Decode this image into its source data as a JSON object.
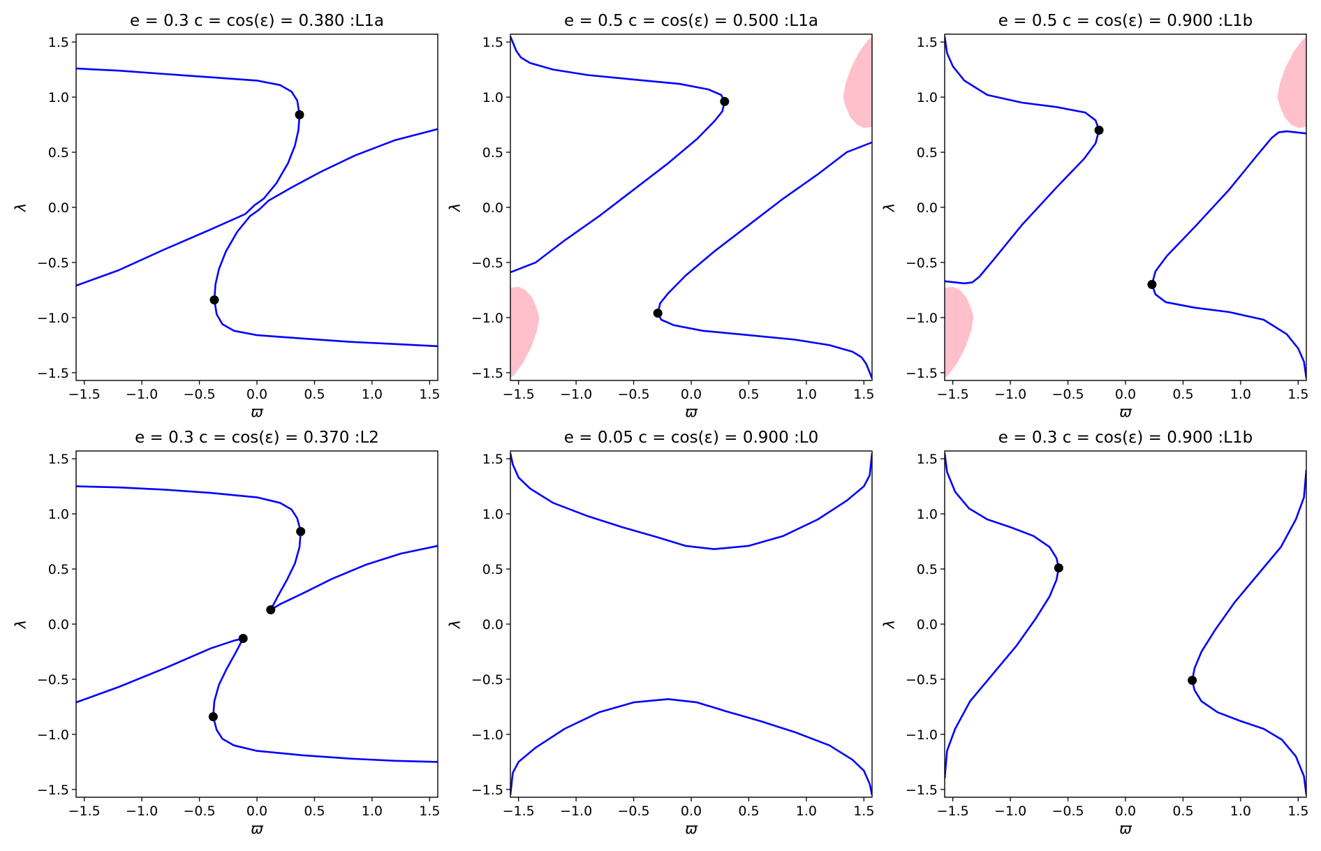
{
  "figure": {
    "grid": "2x3",
    "background": "#ffffff",
    "curve_color": "#0000ff",
    "marker_color": "#000000",
    "region_color": "#ffc0cb"
  },
  "chart_data": [
    {
      "type": "line",
      "title": "e = 0.3  c = cos(ε) = 0.380 :L1a",
      "xlabel": "ϖ",
      "ylabel": "λ",
      "xlim": [
        -1.5708,
        1.5708
      ],
      "ylim": [
        -1.5708,
        1.5708
      ],
      "xticks": [
        -1.5,
        -1.0,
        -0.5,
        0.0,
        0.5,
        1.0,
        1.5
      ],
      "yticks": [
        -1.5,
        -1.0,
        -0.5,
        0.0,
        0.5,
        1.0,
        1.5
      ],
      "tick_labels": [
        "−1.5",
        "−1.0",
        "−0.5",
        "0.0",
        "0.5",
        "1.0",
        "1.5"
      ],
      "grid": false,
      "series": [
        {
          "x": [
            -1.5708,
            -1.2,
            -0.8,
            -0.4,
            0.0,
            0.2,
            0.3,
            0.35,
            0.37,
            0.36,
            0.33,
            0.27,
            0.17,
            0.06,
            -0.02
          ],
          "y": [
            1.26,
            1.24,
            1.21,
            1.18,
            1.15,
            1.11,
            1.05,
            0.97,
            0.84,
            0.7,
            0.56,
            0.4,
            0.22,
            0.08,
            0.02
          ]
        },
        {
          "x": [
            -1.5708,
            -1.2,
            -0.8,
            -0.4,
            -0.1,
            -0.02
          ],
          "y": [
            -0.71,
            -0.57,
            -0.38,
            -0.2,
            -0.06,
            0.02
          ]
        },
        {
          "x": [
            0.02,
            0.1,
            0.3,
            0.55,
            0.85,
            1.2,
            1.5708
          ],
          "y": [
            -0.02,
            0.06,
            0.18,
            0.32,
            0.47,
            0.61,
            0.71
          ]
        },
        {
          "x": [
            0.02,
            -0.06,
            -0.17,
            -0.27,
            -0.33,
            -0.36,
            -0.37,
            -0.35,
            -0.3,
            -0.2,
            0.0,
            0.4,
            0.8,
            1.2,
            1.5708
          ],
          "y": [
            -0.02,
            -0.08,
            -0.22,
            -0.4,
            -0.56,
            -0.7,
            -0.84,
            -0.97,
            -1.06,
            -1.12,
            -1.16,
            -1.19,
            -1.22,
            -1.24,
            -1.26
          ]
        }
      ],
      "points": [
        {
          "x": 0.37,
          "y": 0.84
        },
        {
          "x": -0.37,
          "y": -0.84
        }
      ],
      "regions": []
    },
    {
      "type": "line",
      "title": "e = 0.5  c = cos(ε) = 0.500 :L1a",
      "xlabel": "ϖ",
      "ylabel": "λ",
      "xlim": [
        -1.5708,
        1.5708
      ],
      "ylim": [
        -1.5708,
        1.5708
      ],
      "xticks": [
        -1.5,
        -1.0,
        -0.5,
        0.0,
        0.5,
        1.0,
        1.5
      ],
      "yticks": [
        -1.5,
        -1.0,
        -0.5,
        0.0,
        0.5,
        1.0,
        1.5
      ],
      "tick_labels": [
        "−1.5",
        "−1.0",
        "−0.5",
        "0.0",
        "0.5",
        "1.0",
        "1.5"
      ],
      "grid": false,
      "series": [
        {
          "x": [
            -1.5708,
            -1.52,
            -1.48,
            -1.4,
            -1.2,
            -0.9,
            -0.5,
            -0.1,
            0.15,
            0.26,
            0.29,
            0.27,
            0.2,
            0.05,
            -0.2,
            -0.5,
            -0.8,
            -1.1,
            -1.35,
            -1.5708
          ],
          "y": [
            1.55,
            1.42,
            1.36,
            1.31,
            1.25,
            1.2,
            1.16,
            1.12,
            1.07,
            1.02,
            0.96,
            0.87,
            0.78,
            0.62,
            0.4,
            0.16,
            -0.08,
            -0.3,
            -0.5,
            -0.59
          ]
        },
        {
          "x": [
            1.5708,
            1.52,
            1.48,
            1.4,
            1.2,
            0.9,
            0.5,
            0.1,
            -0.15,
            -0.26,
            -0.29,
            -0.27,
            -0.2,
            -0.05,
            0.2,
            0.5,
            0.8,
            1.1,
            1.35,
            1.5708
          ],
          "y": [
            -1.55,
            -1.42,
            -1.36,
            -1.31,
            -1.25,
            -1.2,
            -1.16,
            -1.12,
            -1.07,
            -1.02,
            -0.96,
            -0.87,
            -0.78,
            -0.62,
            -0.4,
            -0.16,
            0.08,
            0.3,
            0.5,
            0.59
          ]
        }
      ],
      "points": [
        {
          "x": 0.29,
          "y": 0.96
        },
        {
          "x": -0.29,
          "y": -0.96
        }
      ],
      "regions": [
        {
          "x": [
            -1.5708,
            -1.5,
            -1.44,
            -1.38,
            -1.34,
            -1.32,
            -1.34,
            -1.39,
            -1.46,
            -1.53,
            -1.5708
          ],
          "y": [
            -0.73,
            -0.72,
            -0.75,
            -0.82,
            -0.92,
            -1.0,
            -1.12,
            -1.27,
            -1.41,
            -1.51,
            -1.55
          ]
        },
        {
          "x": [
            1.5708,
            1.5,
            1.44,
            1.38,
            1.34,
            1.32,
            1.34,
            1.39,
            1.46,
            1.53,
            1.5708
          ],
          "y": [
            0.73,
            0.72,
            0.75,
            0.82,
            0.92,
            1.0,
            1.12,
            1.27,
            1.41,
            1.51,
            1.55
          ]
        }
      ]
    },
    {
      "type": "line",
      "title": "e = 0.5  c = cos(ε) = 0.900 :L1b",
      "xlabel": "ϖ",
      "ylabel": "λ",
      "xlim": [
        -1.5708,
        1.5708
      ],
      "ylim": [
        -1.5708,
        1.5708
      ],
      "xticks": [
        -1.5,
        -1.0,
        -0.5,
        0.0,
        0.5,
        1.0,
        1.5
      ],
      "yticks": [
        -1.5,
        -1.0,
        -0.5,
        0.0,
        0.5,
        1.0,
        1.5
      ],
      "tick_labels": [
        "−1.5",
        "−1.0",
        "−0.5",
        "0.0",
        "0.5",
        "1.0",
        "1.5"
      ],
      "grid": false,
      "series": [
        {
          "x": [
            -1.5708,
            -1.55,
            -1.5,
            -1.4,
            -1.2,
            -0.9,
            -0.6,
            -0.35,
            -0.26,
            -0.23,
            -0.26,
            -0.36,
            -0.6,
            -0.9,
            -1.15,
            -1.27,
            -1.33,
            -1.4,
            -1.5708
          ],
          "y": [
            1.55,
            1.4,
            1.28,
            1.15,
            1.02,
            0.95,
            0.91,
            0.86,
            0.79,
            0.7,
            0.58,
            0.44,
            0.18,
            -0.16,
            -0.48,
            -0.63,
            -0.68,
            -0.69,
            -0.67
          ]
        },
        {
          "x": [
            1.5708,
            1.55,
            1.5,
            1.4,
            1.2,
            0.9,
            0.6,
            0.35,
            0.26,
            0.23,
            0.26,
            0.36,
            0.6,
            0.9,
            1.15,
            1.27,
            1.33,
            1.4,
            1.5708
          ],
          "y": [
            -1.55,
            -1.4,
            -1.28,
            -1.15,
            -1.02,
            -0.95,
            -0.91,
            -0.86,
            -0.79,
            -0.7,
            -0.58,
            -0.44,
            -0.18,
            0.16,
            0.48,
            0.63,
            0.68,
            0.69,
            0.67
          ]
        }
      ],
      "points": [
        {
          "x": -0.23,
          "y": 0.7
        },
        {
          "x": 0.23,
          "y": -0.7
        }
      ],
      "regions": [
        {
          "x": [
            -1.5708,
            -1.5,
            -1.44,
            -1.38,
            -1.34,
            -1.32,
            -1.34,
            -1.39,
            -1.46,
            -1.53,
            -1.5708
          ],
          "y": [
            -0.73,
            -0.72,
            -0.75,
            -0.82,
            -0.92,
            -1.0,
            -1.12,
            -1.27,
            -1.41,
            -1.51,
            -1.55
          ]
        },
        {
          "x": [
            1.5708,
            1.5,
            1.44,
            1.38,
            1.34,
            1.32,
            1.34,
            1.39,
            1.46,
            1.53,
            1.5708
          ],
          "y": [
            0.73,
            0.72,
            0.75,
            0.82,
            0.92,
            1.0,
            1.12,
            1.27,
            1.41,
            1.51,
            1.55
          ]
        }
      ]
    },
    {
      "type": "line",
      "title": "e = 0.3  c = cos(ε) = 0.370 :L2",
      "xlabel": "ϖ",
      "ylabel": "λ",
      "xlim": [
        -1.5708,
        1.5708
      ],
      "ylim": [
        -1.5708,
        1.5708
      ],
      "xticks": [
        -1.5,
        -1.0,
        -0.5,
        0.0,
        0.5,
        1.0,
        1.5
      ],
      "yticks": [
        -1.5,
        -1.0,
        -0.5,
        0.0,
        0.5,
        1.0,
        1.5
      ],
      "tick_labels": [
        "−1.5",
        "−1.0",
        "−0.5",
        "0.0",
        "0.5",
        "1.0",
        "1.5"
      ],
      "grid": false,
      "series": [
        {
          "x": [
            -1.5708,
            -1.2,
            -0.8,
            -0.4,
            0.0,
            0.2,
            0.3,
            0.35,
            0.38,
            0.37,
            0.33,
            0.26,
            0.18,
            0.12
          ],
          "y": [
            1.25,
            1.24,
            1.22,
            1.19,
            1.15,
            1.1,
            1.04,
            0.96,
            0.84,
            0.7,
            0.55,
            0.4,
            0.25,
            0.13
          ]
        },
        {
          "x": [
            0.12,
            0.2,
            0.4,
            0.65,
            0.95,
            1.25,
            1.5708
          ],
          "y": [
            0.13,
            0.18,
            0.28,
            0.41,
            0.54,
            0.64,
            0.71
          ]
        },
        {
          "x": [
            -1.5708,
            -1.2,
            -0.8,
            -0.4,
            -0.2,
            -0.12
          ],
          "y": [
            -0.71,
            -0.57,
            -0.4,
            -0.22,
            -0.15,
            -0.13
          ]
        },
        {
          "x": [
            -0.12,
            -0.18,
            -0.26,
            -0.33,
            -0.37,
            -0.38,
            -0.35,
            -0.3,
            -0.2,
            0.0,
            0.4,
            0.8,
            1.2,
            1.5708
          ],
          "y": [
            -0.13,
            -0.25,
            -0.4,
            -0.55,
            -0.7,
            -0.84,
            -0.96,
            -1.04,
            -1.1,
            -1.15,
            -1.19,
            -1.22,
            -1.24,
            -1.25
          ]
        }
      ],
      "points": [
        {
          "x": 0.38,
          "y": 0.84
        },
        {
          "x": 0.12,
          "y": 0.13
        },
        {
          "x": -0.12,
          "y": -0.13
        },
        {
          "x": -0.38,
          "y": -0.84
        }
      ],
      "regions": []
    },
    {
      "type": "line",
      "title": "e = 0.05  c = cos(ε) = 0.900 :L0",
      "xlabel": "ϖ",
      "ylabel": "λ",
      "xlim": [
        -1.5708,
        1.5708
      ],
      "ylim": [
        -1.5708,
        1.5708
      ],
      "xticks": [
        -1.5,
        -1.0,
        -0.5,
        0.0,
        0.5,
        1.0,
        1.5
      ],
      "yticks": [
        -1.5,
        -1.0,
        -0.5,
        0.0,
        0.5,
        1.0,
        1.5
      ],
      "tick_labels": [
        "−1.5",
        "−1.0",
        "−0.5",
        "0.0",
        "0.5",
        "1.0",
        "1.5"
      ],
      "grid": false,
      "series": [
        {
          "x": [
            -1.5708,
            -1.55,
            -1.5,
            -1.4,
            -1.2,
            -0.9,
            -0.6,
            -0.3,
            -0.05,
            0.2,
            0.5,
            0.8,
            1.1,
            1.35,
            1.5,
            1.55,
            1.5708
          ],
          "y": [
            1.55,
            1.45,
            1.33,
            1.23,
            1.1,
            0.98,
            0.88,
            0.79,
            0.71,
            0.68,
            0.71,
            0.8,
            0.95,
            1.12,
            1.25,
            1.35,
            1.55
          ]
        },
        {
          "x": [
            1.5708,
            1.55,
            1.5,
            1.4,
            1.2,
            0.9,
            0.6,
            0.3,
            0.05,
            -0.2,
            -0.5,
            -0.8,
            -1.1,
            -1.35,
            -1.5,
            -1.55,
            -1.5708
          ],
          "y": [
            -1.55,
            -1.45,
            -1.33,
            -1.23,
            -1.1,
            -0.98,
            -0.88,
            -0.79,
            -0.71,
            -0.68,
            -0.71,
            -0.8,
            -0.95,
            -1.12,
            -1.25,
            -1.35,
            -1.55
          ]
        }
      ],
      "points": [],
      "regions": []
    },
    {
      "type": "line",
      "title": "e = 0.3  c = cos(ε) = 0.900 :L1b",
      "xlabel": "ϖ",
      "ylabel": "λ",
      "xlim": [
        -1.5708,
        1.5708
      ],
      "ylim": [
        -1.5708,
        1.5708
      ],
      "xticks": [
        -1.5,
        -1.0,
        -0.5,
        0.0,
        0.5,
        1.0,
        1.5
      ],
      "yticks": [
        -1.5,
        -1.0,
        -0.5,
        0.0,
        0.5,
        1.0,
        1.5
      ],
      "tick_labels": [
        "−1.5",
        "−1.0",
        "−0.5",
        "0.0",
        "0.5",
        "1.0",
        "1.5"
      ],
      "grid": false,
      "series": [
        {
          "x": [
            -1.5708,
            -1.55,
            -1.48,
            -1.36,
            -1.2,
            -1.0,
            -0.8,
            -0.66,
            -0.6,
            -0.58,
            -0.6,
            -0.66,
            -0.78,
            -0.95,
            -1.15,
            -1.35,
            -1.48,
            -1.55,
            -1.5708
          ],
          "y": [
            1.55,
            1.38,
            1.2,
            1.05,
            0.95,
            0.88,
            0.8,
            0.7,
            0.6,
            0.51,
            0.4,
            0.25,
            0.05,
            -0.2,
            -0.45,
            -0.7,
            -0.95,
            -1.15,
            -1.4
          ]
        },
        {
          "x": [
            1.5708,
            1.55,
            1.48,
            1.36,
            1.2,
            1.0,
            0.8,
            0.66,
            0.6,
            0.58,
            0.6,
            0.66,
            0.78,
            0.95,
            1.15,
            1.35,
            1.48,
            1.55,
            1.5708
          ],
          "y": [
            -1.55,
            -1.38,
            -1.2,
            -1.05,
            -0.95,
            -0.88,
            -0.8,
            -0.7,
            -0.6,
            -0.51,
            -0.4,
            -0.25,
            -0.05,
            0.2,
            0.45,
            0.7,
            0.95,
            1.15,
            1.4
          ]
        }
      ],
      "points": [
        {
          "x": -0.58,
          "y": 0.51
        },
        {
          "x": 0.58,
          "y": -0.51
        }
      ],
      "regions": []
    }
  ]
}
